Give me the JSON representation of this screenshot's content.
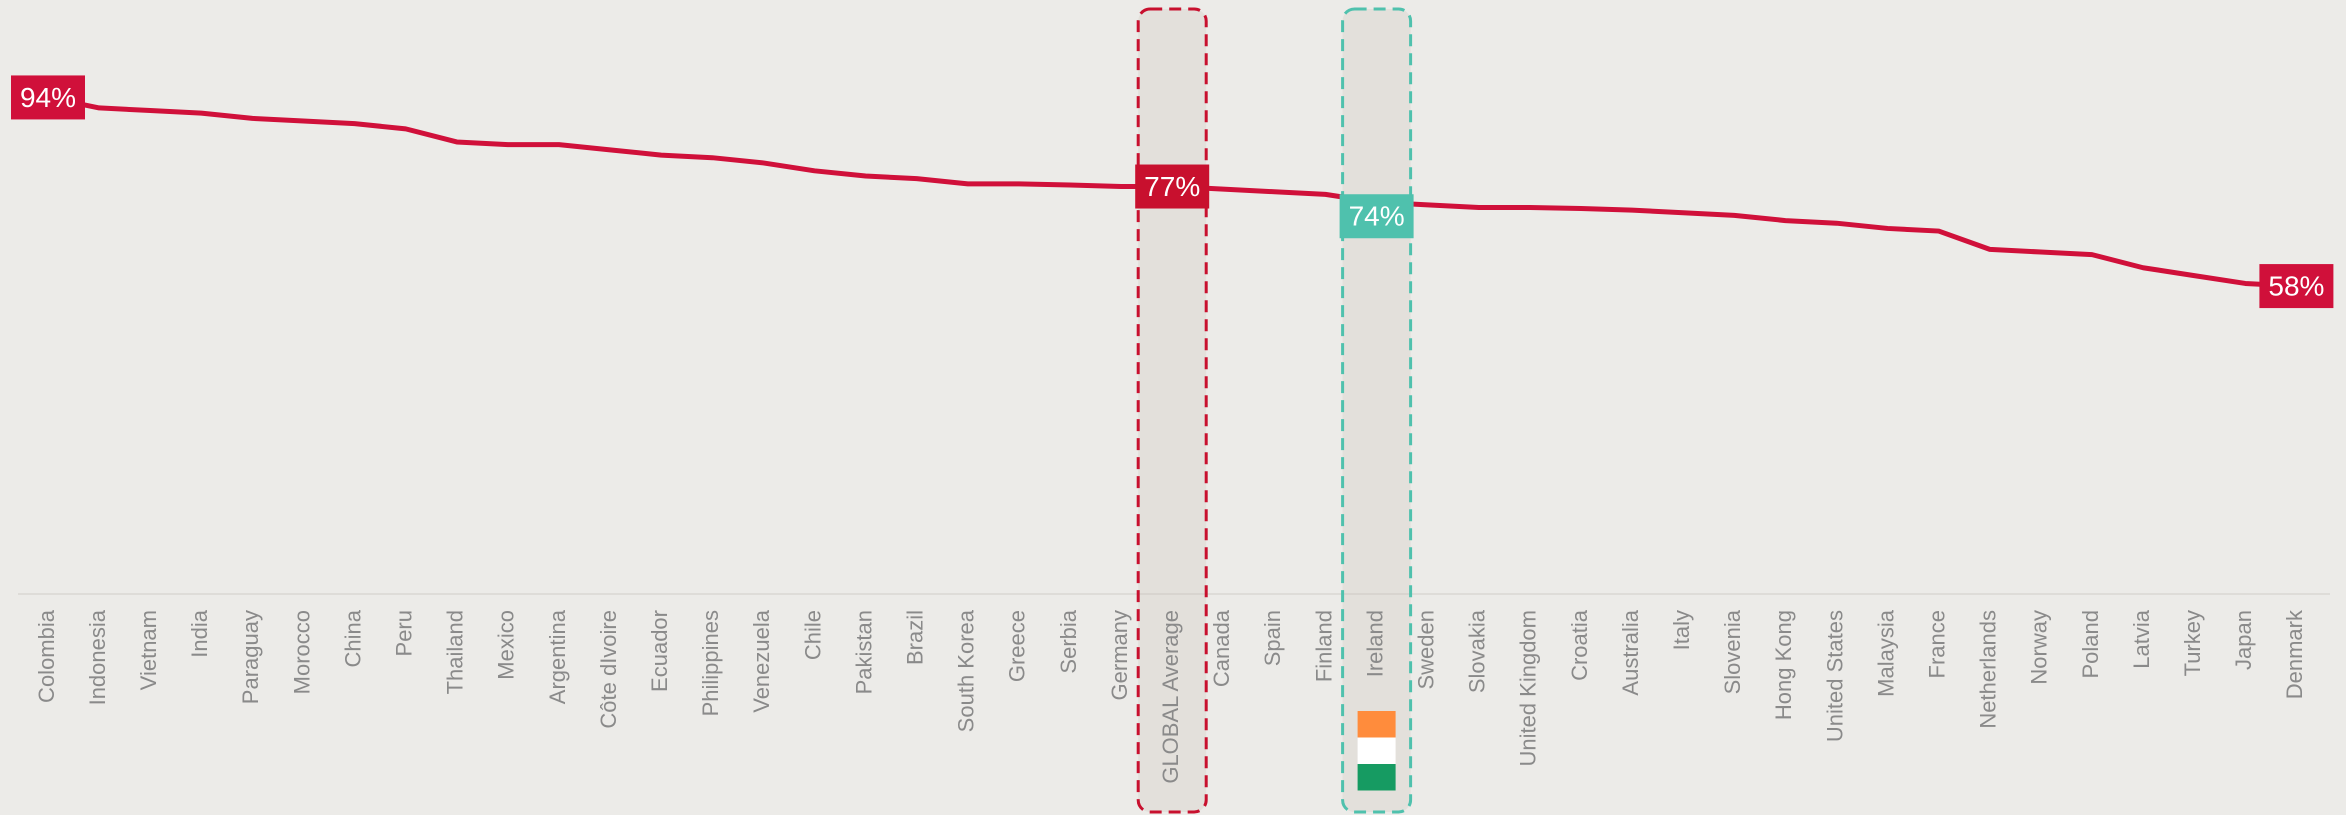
{
  "chart_data": {
    "type": "line",
    "categories": [
      "Colombia",
      "Indonesia",
      "Vietnam",
      "India",
      "Paraguay",
      "Morocco",
      "China",
      "Peru",
      "Thailand",
      "Mexico",
      "Argentina",
      "Côte dIvoire",
      "Ecuador",
      "Philippines",
      "Venezuela",
      "Chile",
      "Pakistan",
      "Brazil",
      "South Korea",
      "Greece",
      "Serbia",
      "Germany",
      "GLOBAL Average",
      "Canada",
      "Spain",
      "Finland",
      "Ireland",
      "Sweden",
      "Slovakia",
      "United Kingdom",
      "Croatia",
      "Australia",
      "Italy",
      "Slovenia",
      "Hong Kong",
      "United States",
      "Malaysia",
      "France",
      "Netherlands",
      "Norway",
      "Poland",
      "Latvia",
      "Turkey",
      "Japan",
      "Denmark"
    ],
    "series": [
      {
        "color": "#d0103a",
        "values": [
          94,
          92,
          91.5,
          91,
          90,
          89.5,
          89,
          88,
          85.5,
          85,
          85,
          84,
          83,
          82.5,
          81.5,
          80,
          79,
          78.5,
          77.5,
          77.5,
          77.3,
          77,
          77,
          76.5,
          76,
          75.5,
          74,
          73.5,
          73,
          73,
          72.8,
          72.5,
          72,
          71.5,
          70.5,
          70,
          69,
          68.5,
          65,
          64.5,
          64,
          61.5,
          60,
          58.5,
          58
        ],
        "value_labels": [
          "94%",
          null,
          null,
          null,
          null,
          null,
          null,
          null,
          null,
          null,
          null,
          null,
          null,
          null,
          null,
          null,
          null,
          null,
          null,
          null,
          null,
          null,
          "77%",
          null,
          null,
          null,
          "74%",
          null,
          null,
          null,
          null,
          null,
          null,
          null,
          null,
          null,
          null,
          null,
          null,
          null,
          null,
          null,
          null,
          null,
          "58%"
        ]
      }
    ],
    "ylim": [
      0,
      100
    ],
    "highlights": [
      {
        "category": "GLOBAL Average",
        "color": "#c8102e"
      },
      {
        "category": "Ireland",
        "color": "#4fc1ad"
      }
    ]
  }
}
